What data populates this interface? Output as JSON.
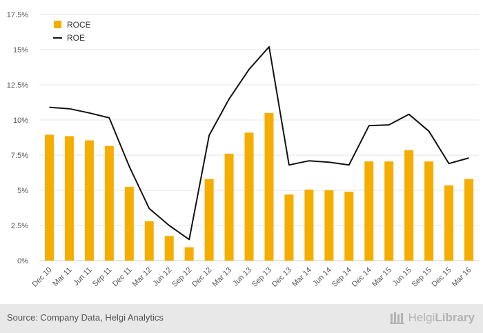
{
  "chart_data": {
    "type": "bar+line",
    "categories": [
      "Dec 10",
      "Mar 11",
      "Jun 11",
      "Sep 11",
      "Dec 11",
      "Mar 12",
      "Jun 12",
      "Sep 12",
      "Dec 12",
      "Mar 13",
      "Jun 13",
      "Sep 13",
      "Dec 13",
      "Mar 14",
      "Jun 14",
      "Sep 14",
      "Dec 14",
      "Mar 15",
      "Jun 15",
      "Sep 15",
      "Dec 15",
      "Mar 16"
    ],
    "series": [
      {
        "name": "ROCE",
        "type": "bar",
        "color": "#f5ad00",
        "values": [
          8.95,
          8.85,
          8.55,
          8.15,
          5.25,
          2.8,
          1.75,
          0.95,
          5.8,
          7.6,
          9.1,
          10.5,
          4.7,
          5.05,
          5.0,
          4.9,
          7.05,
          7.05,
          7.85,
          7.05,
          5.35,
          5.8
        ]
      },
      {
        "name": "ROE",
        "type": "line",
        "color": "#111111",
        "values": [
          10.9,
          10.8,
          10.5,
          10.15,
          6.7,
          3.7,
          2.5,
          1.5,
          8.9,
          11.5,
          13.6,
          15.2,
          6.8,
          7.1,
          7.0,
          6.8,
          9.6,
          9.65,
          10.4,
          9.2,
          6.9,
          7.3
        ]
      }
    ],
    "y_ticks": [
      "0%",
      "2.5%",
      "5%",
      "7.5%",
      "10%",
      "12.5%",
      "15%",
      "17.5%"
    ],
    "y_tick_values": [
      0,
      2.5,
      5,
      7.5,
      10,
      12.5,
      15,
      17.5
    ],
    "ylim": [
      0,
      17.5
    ],
    "grid": true,
    "legend_placement": "top-left"
  },
  "footer": {
    "source": "Source: Company Data, Helgi Analytics",
    "brand_light": "Helgi",
    "brand_bold": "Library"
  }
}
